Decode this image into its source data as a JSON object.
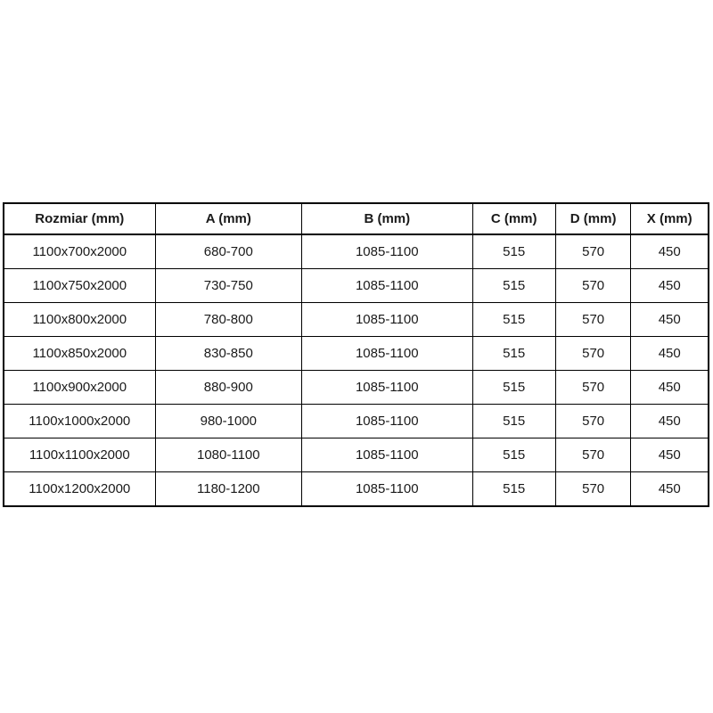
{
  "colors": {
    "background": "#ffffff",
    "border": "#000000",
    "text": "#1a1a1a"
  },
  "chart_data": {
    "type": "table",
    "title": "",
    "columns": [
      "Rozmiar (mm)",
      "A (mm)",
      "B (mm)",
      "C (mm)",
      "D (mm)",
      "X (mm)"
    ],
    "rows": [
      [
        "1100x700x2000",
        "680-700",
        "1085-1100",
        "515",
        "570",
        "450"
      ],
      [
        "1100x750x2000",
        "730-750",
        "1085-1100",
        "515",
        "570",
        "450"
      ],
      [
        "1100x800x2000",
        "780-800",
        "1085-1100",
        "515",
        "570",
        "450"
      ],
      [
        "1100x850x2000",
        "830-850",
        "1085-1100",
        "515",
        "570",
        "450"
      ],
      [
        "1100x900x2000",
        "880-900",
        "1085-1100",
        "515",
        "570",
        "450"
      ],
      [
        "1100x1000x2000",
        "980-1000",
        "1085-1100",
        "515",
        "570",
        "450"
      ],
      [
        "1100x1100x2000",
        "1080-1100",
        "1085-1100",
        "515",
        "570",
        "450"
      ],
      [
        "1100x1200x2000",
        "1180-1200",
        "1085-1100",
        "515",
        "570",
        "450"
      ]
    ]
  }
}
